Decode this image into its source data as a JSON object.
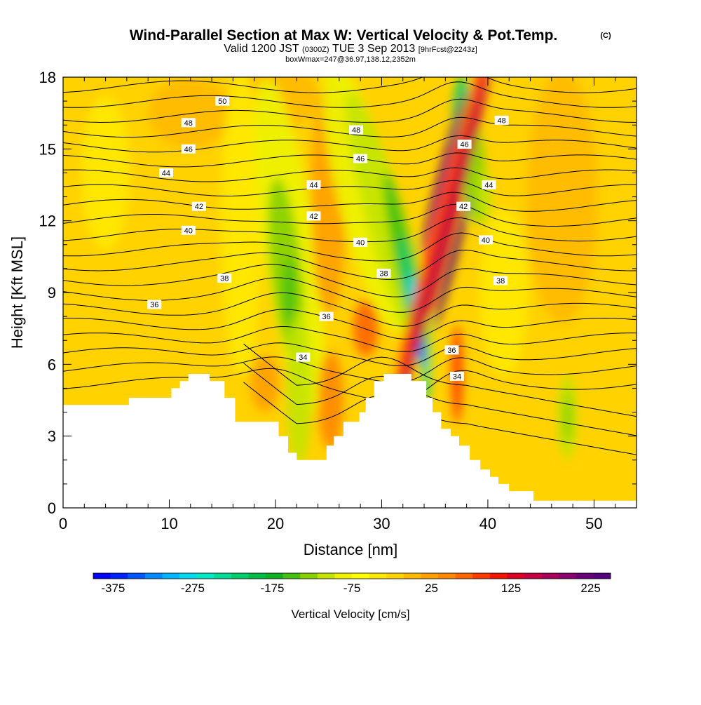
{
  "header": {
    "title": "Wind-Parallel Section at Max W: Vertical Velocity & Pot.Temp.",
    "copyright": "(C)",
    "valid_prefix": "Valid 1200 JST",
    "valid_utc": "(0300Z)",
    "valid_suffix": "TUE 3 Sep 2013",
    "forecast_tag": "[9hrFcst@2243z]",
    "box_info": "boxWmax=247@36.97,138.12,2352m"
  },
  "colorbar": {
    "label": "Vertical Velocity [cm/s]",
    "tick_labels": [
      "-375",
      "-275",
      "-175",
      "-75",
      "25",
      "125",
      "225"
    ],
    "min": -400,
    "max": 250,
    "step": 25,
    "colors": [
      "#0000ff",
      "#0022ff",
      "#0055ff",
      "#0088ff",
      "#00b4ff",
      "#00d8ee",
      "#00e8c4",
      "#00dc96",
      "#00cc6a",
      "#00bb44",
      "#11b022",
      "#44c011",
      "#88d000",
      "#c4e400",
      "#eef200",
      "#ffff00",
      "#ffe800",
      "#ffd200",
      "#ffba00",
      "#ffa000",
      "#ff8800",
      "#ff6600",
      "#ff3c00",
      "#f21400",
      "#dd0022",
      "#c40040",
      "#a80058",
      "#8a006c",
      "#6a0078",
      "#54007e"
    ]
  },
  "chart_data": {
    "type": "cross-section",
    "xlabel": "Distance [nm]",
    "ylabel": "Height [Kft MSL]",
    "xlim": [
      0,
      54
    ],
    "ylim": [
      0,
      18
    ],
    "xticks": [
      0,
      10,
      20,
      30,
      40,
      50
    ],
    "yticks": [
      0,
      3,
      6,
      9,
      12,
      15,
      18
    ],
    "fill_variable": "Vertical Velocity [cm/s]",
    "contour_variable": "Potential Temperature",
    "max_vertical_velocity_cm_s": 247,
    "terrain_kft": [
      [
        0,
        4.3
      ],
      [
        6.2,
        4.3
      ],
      [
        6.2,
        4.6
      ],
      [
        10.2,
        4.6
      ],
      [
        10.2,
        5.0
      ],
      [
        11.0,
        5.0
      ],
      [
        11.0,
        5.3
      ],
      [
        11.8,
        5.3
      ],
      [
        11.8,
        5.6
      ],
      [
        13.8,
        5.6
      ],
      [
        13.8,
        5.3
      ],
      [
        15.2,
        5.3
      ],
      [
        15.2,
        4.6
      ],
      [
        16.2,
        4.6
      ],
      [
        16.2,
        3.6
      ],
      [
        20.3,
        3.6
      ],
      [
        20.3,
        3.0
      ],
      [
        21.2,
        3.0
      ],
      [
        21.2,
        2.3
      ],
      [
        22.0,
        2.3
      ],
      [
        22.0,
        2.0
      ],
      [
        24.8,
        2.0
      ],
      [
        24.8,
        2.6
      ],
      [
        25.5,
        2.6
      ],
      [
        25.5,
        3.0
      ],
      [
        26.4,
        3.0
      ],
      [
        26.4,
        3.6
      ],
      [
        27.9,
        3.6
      ],
      [
        27.9,
        4.0
      ],
      [
        28.5,
        4.0
      ],
      [
        28.5,
        4.6
      ],
      [
        29.3,
        4.6
      ],
      [
        29.3,
        5.3
      ],
      [
        30.2,
        5.3
      ],
      [
        30.2,
        5.6
      ],
      [
        32.8,
        5.6
      ],
      [
        32.8,
        5.3
      ],
      [
        34.2,
        5.3
      ],
      [
        34.2,
        4.6
      ],
      [
        34.8,
        4.6
      ],
      [
        34.8,
        4.0
      ],
      [
        35.6,
        4.0
      ],
      [
        35.6,
        3.3
      ],
      [
        36.5,
        3.3
      ],
      [
        36.5,
        3.0
      ],
      [
        37.3,
        3.0
      ],
      [
        37.3,
        2.6
      ],
      [
        38.3,
        2.6
      ],
      [
        38.3,
        2.0
      ],
      [
        39.3,
        2.0
      ],
      [
        39.3,
        1.6
      ],
      [
        40.2,
        1.6
      ],
      [
        40.2,
        1.3
      ],
      [
        41.0,
        1.3
      ],
      [
        41.0,
        1.0
      ],
      [
        42.0,
        1.0
      ],
      [
        42.0,
        0.7
      ],
      [
        44.3,
        0.7
      ],
      [
        44.3,
        0.3
      ],
      [
        54,
        0.3
      ]
    ],
    "contour_labels": [
      {
        "label": "50",
        "x": 15.0,
        "y": 17.0
      },
      {
        "label": "48",
        "x": 11.8,
        "y": 16.1
      },
      {
        "label": "48",
        "x": 27.6,
        "y": 15.8
      },
      {
        "label": "48",
        "x": 41.3,
        "y": 16.2
      },
      {
        "label": "46",
        "x": 11.8,
        "y": 15.0
      },
      {
        "label": "46",
        "x": 28.0,
        "y": 14.6
      },
      {
        "label": "46",
        "x": 37.8,
        "y": 15.2
      },
      {
        "label": "44",
        "x": 9.7,
        "y": 14.0
      },
      {
        "label": "44",
        "x": 23.6,
        "y": 13.5
      },
      {
        "label": "44",
        "x": 40.1,
        "y": 13.5
      },
      {
        "label": "42",
        "x": 12.8,
        "y": 12.6
      },
      {
        "label": "42",
        "x": 23.6,
        "y": 12.2
      },
      {
        "label": "42",
        "x": 37.7,
        "y": 12.6
      },
      {
        "label": "40",
        "x": 11.8,
        "y": 11.6
      },
      {
        "label": "40",
        "x": 28.0,
        "y": 11.1
      },
      {
        "label": "40",
        "x": 39.8,
        "y": 11.2
      },
      {
        "label": "38",
        "x": 15.2,
        "y": 9.6
      },
      {
        "label": "38",
        "x": 30.2,
        "y": 9.8
      },
      {
        "label": "38",
        "x": 41.2,
        "y": 9.5
      },
      {
        "label": "36",
        "x": 8.6,
        "y": 8.5
      },
      {
        "label": "36",
        "x": 24.8,
        "y": 8.0
      },
      {
        "label": "36",
        "x": 36.6,
        "y": 6.6
      },
      {
        "label": "34",
        "x": 22.6,
        "y": 6.3
      },
      {
        "label": "34",
        "x": 37.1,
        "y": 5.5
      }
    ]
  }
}
